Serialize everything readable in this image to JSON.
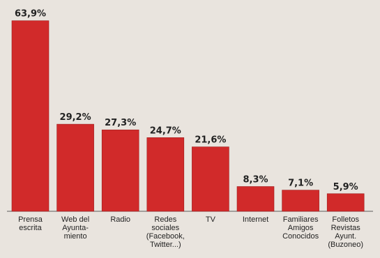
{
  "chart_data": {
    "type": "bar",
    "categories": [
      [
        "Prensa",
        "escrita"
      ],
      [
        "Web del",
        "Ayunta-",
        "miento"
      ],
      [
        "Radio"
      ],
      [
        "Redes",
        "sociales",
        "(Facebook,",
        "Twitter...)"
      ],
      [
        "TV"
      ],
      [
        "Internet"
      ],
      [
        "Familiares",
        "Amigos",
        "Conocidos"
      ],
      [
        "Folletos",
        "Revistas",
        "Ayunt.",
        "(Buzoneo)"
      ]
    ],
    "values": [
      63.9,
      29.2,
      27.3,
      24.7,
      21.6,
      8.3,
      7.1,
      5.9
    ],
    "value_labels": [
      "63,9%",
      "29,2%",
      "27,3%",
      "24,7%",
      "21,6%",
      "8,3%",
      "7,1%",
      "5,9%"
    ],
    "ylim": [
      0,
      65
    ],
    "bar_color": "#d12a2a",
    "grid": false,
    "legend": false
  }
}
